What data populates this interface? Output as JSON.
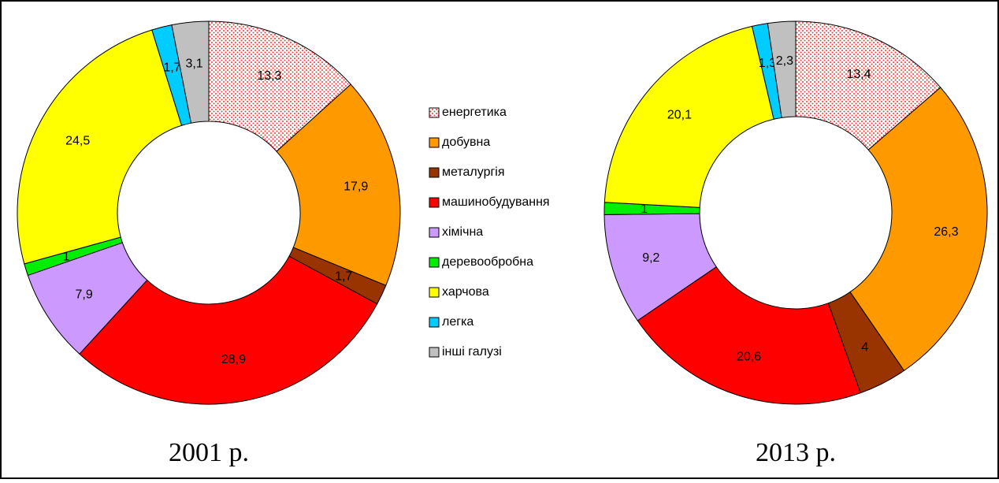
{
  "legend": {
    "categories": [
      "енергетика",
      "добувна",
      "металургія",
      "машинобудування",
      "хімічна",
      "деревообробна",
      "харчова",
      "легка",
      "інші галузі"
    ],
    "colors": [
      "#ff5050",
      "#ff9900",
      "#993300",
      "#ff0000",
      "#cc99ff",
      "#00ee00",
      "#ffff00",
      "#00ccff",
      "#c0c0c0"
    ],
    "patterns": [
      "dots",
      null,
      null,
      null,
      null,
      null,
      null,
      null,
      null
    ]
  },
  "chart_data": [
    {
      "type": "pie",
      "title": "2001 р.",
      "values": [
        13.3,
        17.9,
        1.7,
        28.9,
        7.9,
        1,
        24.5,
        1.7,
        3.1
      ],
      "value_labels": [
        "13,3",
        "17,9",
        "1,7",
        "28,9",
        "7,9",
        "1",
        "24,5",
        "1,7",
        "3,1"
      ]
    },
    {
      "type": "pie",
      "title": "2013 р.",
      "values": [
        13.4,
        26.3,
        4,
        20.6,
        9.2,
        1,
        20.1,
        1.3,
        2.3
      ],
      "value_labels": [
        "13,4",
        "26,3",
        "4",
        "20,6",
        "9,2",
        "1",
        "20,1",
        "1,3",
        "2,3"
      ]
    }
  ]
}
